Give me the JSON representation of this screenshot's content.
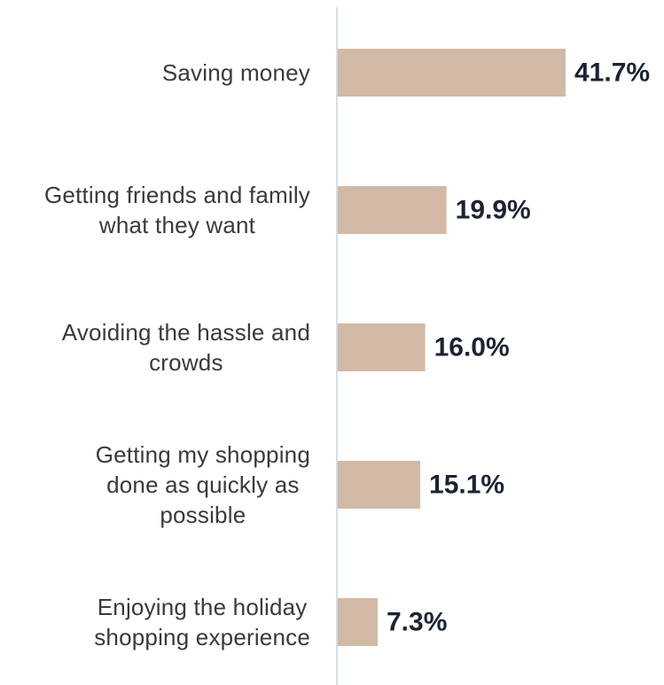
{
  "chart_data": {
    "type": "bar",
    "orientation": "horizontal",
    "categories": [
      [
        "Saving money"
      ],
      [
        "Getting friends and family",
        "what they want"
      ],
      [
        "Avoiding the hassle and",
        "crowds"
      ],
      [
        "Getting my shopping",
        "done as quickly as",
        "possible"
      ],
      [
        "Enjoying the holiday",
        "shopping experience"
      ]
    ],
    "values": [
      41.7,
      19.9,
      16.0,
      15.1,
      7.3
    ],
    "value_labels": [
      "41.7%",
      "19.9%",
      "16.0%",
      "15.1%",
      "7.3%"
    ],
    "title": "",
    "xlabel": "",
    "ylabel": "",
    "xlim": [
      0,
      41.7
    ],
    "grid": false,
    "legend": "none",
    "colors": {
      "bar": "#d2b9a6",
      "axis": "#c5d3e0",
      "category_text": "#3a3a3a",
      "value_text": "#1b2333"
    }
  }
}
